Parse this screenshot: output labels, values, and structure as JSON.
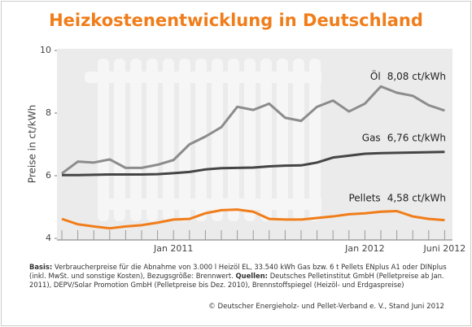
{
  "chart_data": {
    "type": "line",
    "title": "Heizkostenentwicklung in Deutschland",
    "ylabel": "Preise in ct/kWh",
    "categories": [
      null,
      null,
      null,
      null,
      null,
      null,
      null,
      "Jan 2011",
      null,
      null,
      null,
      null,
      null,
      null,
      null,
      null,
      null,
      null,
      null,
      "Jan 2012",
      null,
      null,
      null,
      null,
      "Juni 2012"
    ],
    "ylim": [
      4,
      10
    ],
    "yticks": [
      4,
      6,
      8,
      10
    ],
    "series": [
      {
        "name": "Öl",
        "color": "#8c8c8c",
        "values": [
          6.07,
          6.45,
          6.42,
          6.52,
          6.25,
          6.25,
          6.35,
          6.5,
          7.0,
          7.25,
          7.55,
          8.2,
          8.1,
          8.3,
          7.85,
          7.75,
          8.2,
          8.4,
          8.05,
          8.3,
          8.85,
          8.65,
          8.55,
          8.25,
          8.08
        ],
        "value_labels": [
          null,
          null,
          null,
          null,
          null,
          null,
          null,
          null,
          null,
          null,
          null,
          null,
          null,
          null,
          null,
          null,
          null,
          null,
          null,
          null,
          null,
          null,
          null,
          null,
          "8,08 ct/kWh"
        ]
      },
      {
        "name": "Gas",
        "color": "#454545",
        "values": [
          6.02,
          6.02,
          6.03,
          6.04,
          6.04,
          6.04,
          6.05,
          6.08,
          6.12,
          6.2,
          6.24,
          6.25,
          6.26,
          6.3,
          6.32,
          6.33,
          6.42,
          6.58,
          6.64,
          6.7,
          6.72,
          6.73,
          6.74,
          6.75,
          6.76
        ],
        "value_labels": [
          null,
          null,
          null,
          null,
          null,
          null,
          null,
          null,
          null,
          null,
          null,
          null,
          null,
          null,
          null,
          null,
          null,
          null,
          null,
          null,
          null,
          null,
          null,
          null,
          "6,76 ct/kWh"
        ]
      },
      {
        "name": "Pellets",
        "color": "#f07d1a",
        "values": [
          4.62,
          4.45,
          4.38,
          4.32,
          4.38,
          4.42,
          4.5,
          4.6,
          4.62,
          4.8,
          4.9,
          4.92,
          4.85,
          4.62,
          4.6,
          4.6,
          4.65,
          4.7,
          4.77,
          4.8,
          4.85,
          4.87,
          4.7,
          4.62,
          4.58
        ],
        "value_labels": [
          null,
          null,
          null,
          null,
          null,
          null,
          null,
          null,
          null,
          null,
          null,
          null,
          null,
          null,
          null,
          null,
          null,
          null,
          null,
          null,
          null,
          null,
          null,
          null,
          "4,58 ct/kWh"
        ]
      }
    ],
    "notes": [
      {
        "label": "Basis:",
        "text": "Verbraucherpreise für die Abnahme von 3.000 l Heizöl EL, 33.540 kWh Gas bzw. 6 t Pellets ENplus A1 oder DINplus (inkl. MwSt. und sonstige Kosten), Bezugsgröße: Brennwert."
      },
      {
        "label": "Quellen:",
        "text": "Deutsches Pelletinstitut GmbH (Pelletpreise ab Jan. 2011), DEPV/Solar Promotion GmbH (Pelletpreise bis Dez. 2010), Brennstoffspiegel (Heizöl- und Erdgaspreise)"
      }
    ],
    "credit": "© Deutscher Energieholz- und Pellet-Verband e. V., Stand Juni 2012"
  }
}
